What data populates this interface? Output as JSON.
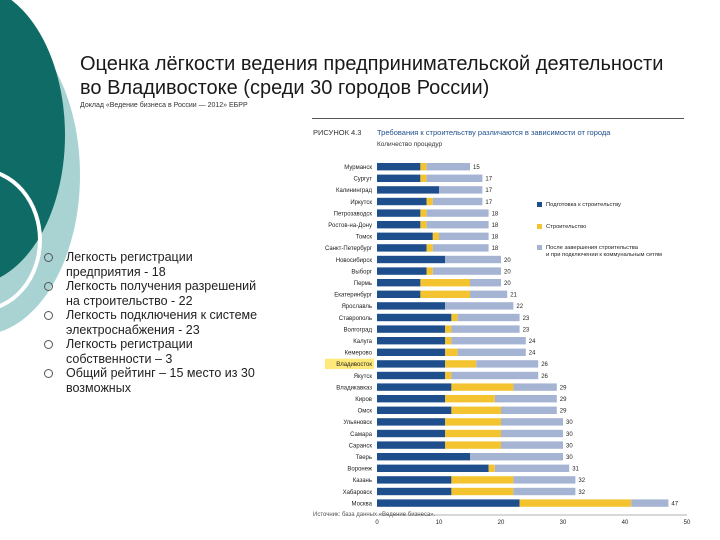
{
  "slide": {
    "title_line1": "Оценка лёгкости ведения предпринимательской деятельности",
    "title_line2": "во Владивостоке (среди 30 городов России)",
    "subtitle": "Доклад «Ведение бизнеса в России — 2012» ЕБРР",
    "bullets": [
      "Легкость регистрации предприятия - 18",
      "Легкость получения разрешений на строительство - 22",
      "Легкость подключения к системе электроснабжения - 23",
      "Легкость регистрации собственности – 3",
      "Общий рейтинг – 15 место из 30 возможных"
    ]
  },
  "colors": {
    "teal_dark": "#0e6b66",
    "teal_light": "#a9d3d3",
    "series_blue": "#1f4e8c",
    "series_yellow": "#f4c430",
    "series_grey": "#a6b4d4",
    "highlight": "#ffe97a"
  },
  "chart_data": {
    "type": "bar",
    "orientation": "horizontal-stacked",
    "figure_label": "РИСУНОК 4.3",
    "title": "Требования к строительству различаются в зависимости от города",
    "subtitle": "Количество процедур",
    "source": "Источник: база данных «Ведение бизнеса».",
    "xlim": [
      0,
      50
    ],
    "xticks": [
      0,
      10,
      20,
      30,
      40,
      50
    ],
    "highlight_category": "Владивосток",
    "legend_position": "right",
    "categories": [
      "Мурманск",
      "Сургут",
      "Калининград",
      "Иркутск",
      "Петрозаводск",
      "Ростов-на-Дону",
      "Томск",
      "Санкт-Петербург",
      "Новосибирск",
      "Выборг",
      "Пермь",
      "Екатеринбург",
      "Ярославль",
      "Ставрополь",
      "Волгоград",
      "Калуга",
      "Кемерово",
      "Владивосток",
      "Якутск",
      "Владикавказ",
      "Киров",
      "Омск",
      "Ульяновск",
      "Самара",
      "Саранск",
      "Тверь",
      "Воронеж",
      "Казань",
      "Хабаровск",
      "Москва"
    ],
    "series": [
      {
        "name": "Подготовка к строительству",
        "values": [
          7,
          7,
          10,
          8,
          7,
          7,
          9,
          8,
          11,
          8,
          7,
          7,
          11,
          12,
          11,
          11,
          11,
          11,
          11,
          12,
          11,
          12,
          11,
          11,
          11,
          15,
          18,
          12,
          12,
          23
        ]
      },
      {
        "name": "Строительство",
        "values": [
          1,
          1,
          0,
          1,
          1,
          1,
          1,
          1,
          0,
          1,
          8,
          8,
          0,
          1,
          1,
          1,
          2,
          5,
          1,
          10,
          8,
          8,
          9,
          9,
          9,
          0,
          1,
          10,
          10,
          18
        ]
      },
      {
        "name": "После завершения строительства и при подключении к коммунальным сетям",
        "values": [
          7,
          9,
          7,
          8,
          10,
          10,
          8,
          9,
          9,
          11,
          5,
          6,
          11,
          10,
          11,
          12,
          11,
          10,
          14,
          7,
          10,
          9,
          10,
          10,
          10,
          15,
          12,
          10,
          10,
          6
        ]
      }
    ],
    "totals": [
      15,
      17,
      17,
      17,
      18,
      18,
      18,
      18,
      20,
      20,
      20,
      21,
      22,
      23,
      23,
      24,
      24,
      26,
      26,
      29,
      29,
      29,
      30,
      30,
      30,
      30,
      31,
      32,
      32,
      47
    ]
  }
}
